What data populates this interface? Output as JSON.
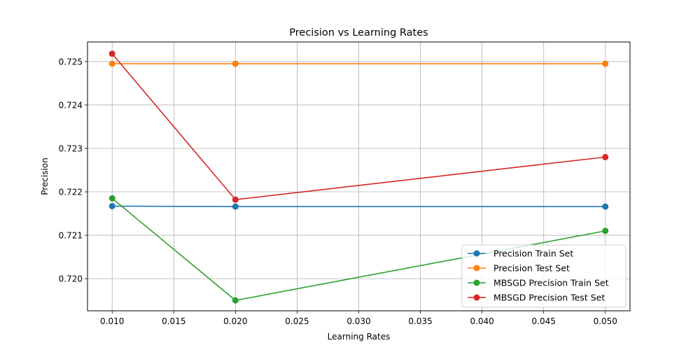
{
  "chart_data": {
    "type": "line",
    "title": "Precision vs Learning Rates",
    "xlabel": "Learning Rates",
    "ylabel": "Precision",
    "x": [
      0.01,
      0.02,
      0.05
    ],
    "xlim": [
      0.008,
      0.052
    ],
    "ylim": [
      0.71926,
      0.72545
    ],
    "xticks": [
      "0.010",
      "0.015",
      "0.020",
      "0.025",
      "0.030",
      "0.035",
      "0.040",
      "0.045",
      "0.050"
    ],
    "xtick_values": [
      0.01,
      0.015,
      0.02,
      0.025,
      0.03,
      0.035,
      0.04,
      0.045,
      0.05
    ],
    "yticks": [
      "0.720",
      "0.721",
      "0.722",
      "0.723",
      "0.724",
      "0.725"
    ],
    "ytick_values": [
      0.72,
      0.721,
      0.722,
      0.723,
      0.724,
      0.725
    ],
    "grid": true,
    "legend_position": "lower-right",
    "series": [
      {
        "name": "Precision Train Set",
        "color": "#1f77b4",
        "values": [
          0.72167,
          0.72166,
          0.72166
        ]
      },
      {
        "name": "Precision Test Set",
        "color": "#ff7f0e",
        "values": [
          0.72495,
          0.72495,
          0.72495
        ]
      },
      {
        "name": "MBSGD Precision Train Set",
        "color": "#2ca02c",
        "values": [
          0.72185,
          0.7195,
          0.7211
        ]
      },
      {
        "name": "MBSGD Precision Test Set",
        "color": "#d62728",
        "values": [
          0.72518,
          0.72182,
          0.7228
        ]
      }
    ]
  }
}
